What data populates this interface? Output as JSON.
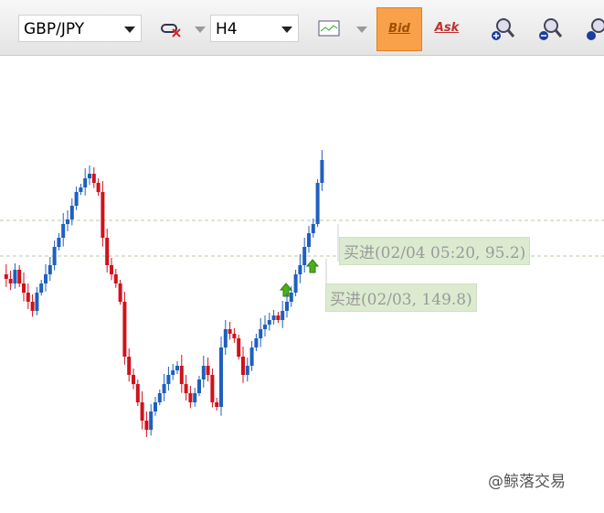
{
  "toolbar": {
    "symbol": "GBP/JPY",
    "timeframe": "H4",
    "bid": "Bid",
    "ask": "Ask"
  },
  "annotations": [
    "买进(02/04 05:20, 95.2)",
    "买进(02/03, 149.8)"
  ],
  "watermark": "@鲸落交易"
}
